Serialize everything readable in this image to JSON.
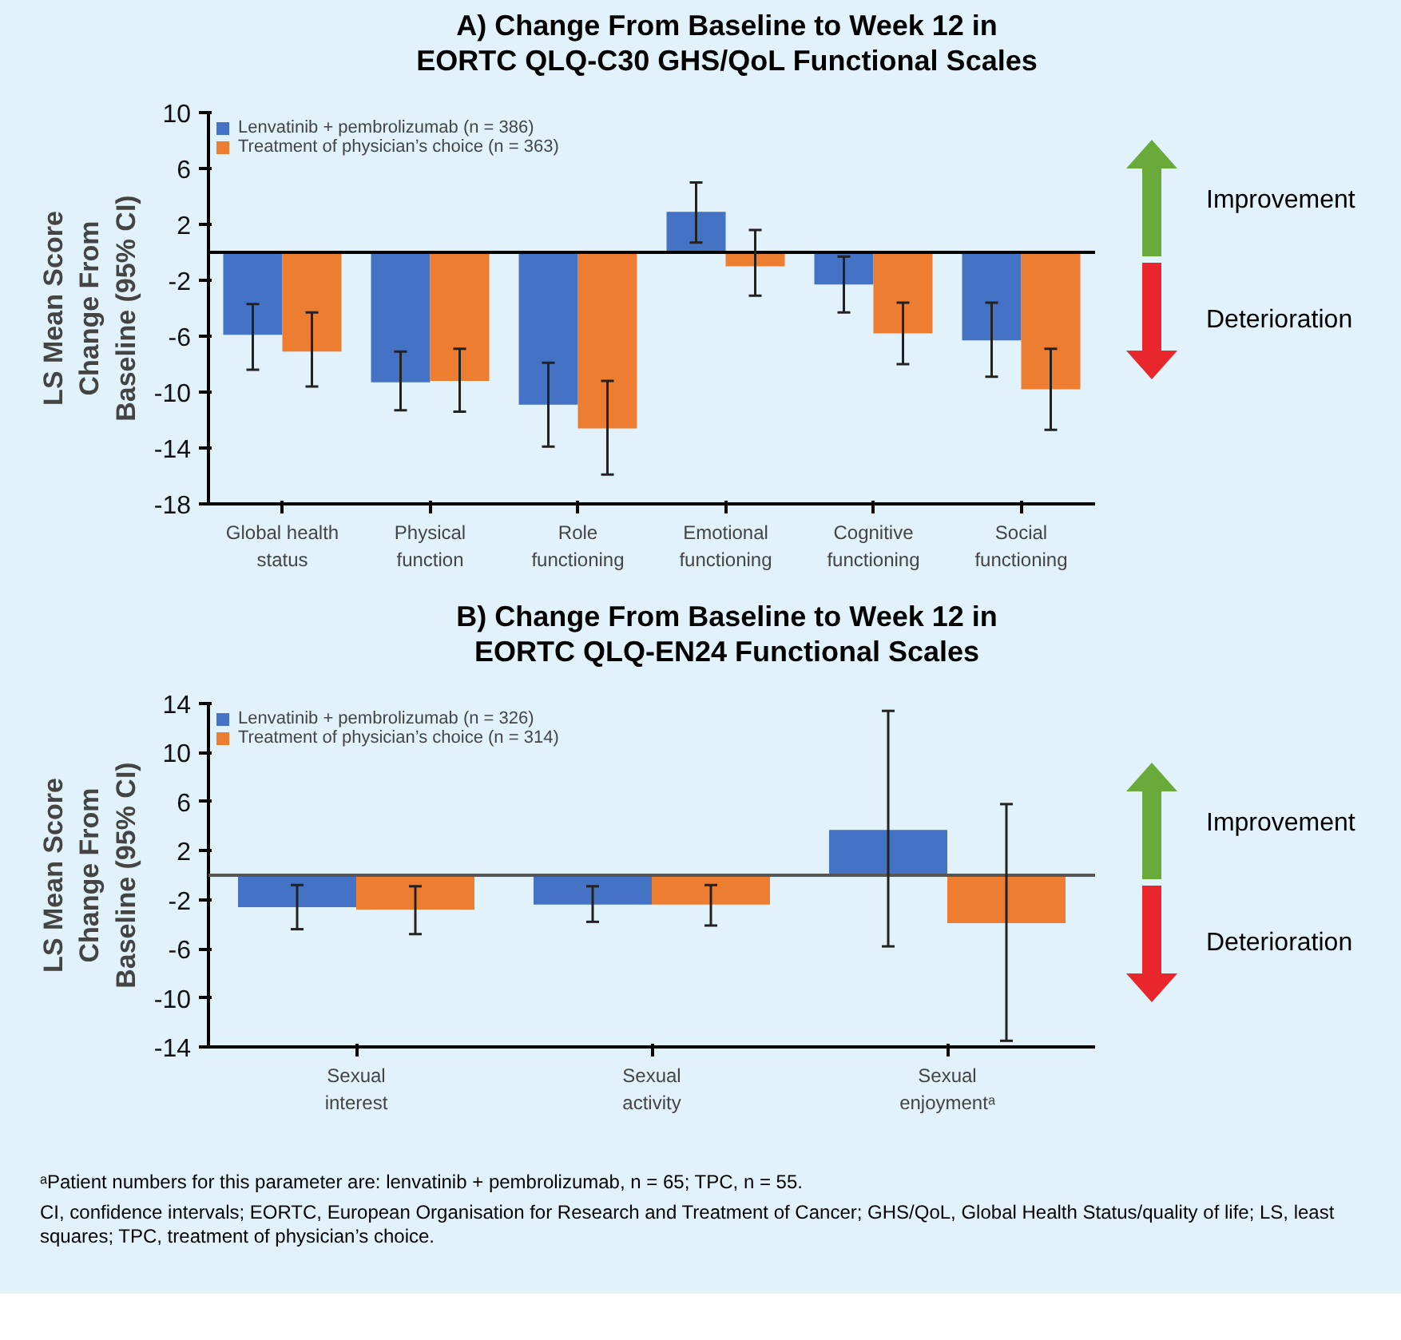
{
  "chart_data": [
    {
      "type": "bar",
      "title": "A) Change From Baseline to Week 12 in EORTC QLQ-C30 GHS/QoL Functional Scales",
      "ylabel": "LS Mean Score Change From Baseline (95% CI)",
      "categories": [
        "Global health status",
        "Physical function",
        "Role functioning",
        "Emotional functioning",
        "Cognitive functioning",
        "Social functioning"
      ],
      "series": [
        {
          "name": "Lenvatinib + pembrolizumab (n = 386)",
          "color": "#4472c4",
          "values": [
            -5.9,
            -9.3,
            -10.9,
            2.9,
            -2.3,
            -6.3
          ],
          "errors": [
            [
              -8.4,
              -3.7
            ],
            [
              -11.3,
              -7.1
            ],
            [
              -13.9,
              -7.9
            ],
            [
              0.7,
              5.0
            ],
            [
              -4.3,
              -0.3
            ],
            [
              -8.9,
              -3.6
            ]
          ]
        },
        {
          "name": "Treatment of physician’s choice (n = 363)",
          "color": "#ed7d31",
          "values": [
            -7.1,
            -9.2,
            -12.6,
            -1.0,
            -5.8,
            -9.8
          ],
          "errors": [
            [
              -9.6,
              -4.3
            ],
            [
              -11.4,
              -6.9
            ],
            [
              -15.9,
              -9.2
            ],
            [
              -3.1,
              1.6
            ],
            [
              -8.0,
              -3.6
            ],
            [
              -12.7,
              -6.9
            ]
          ]
        }
      ],
      "ylim": [
        -18,
        10
      ],
      "yticks": [
        -18,
        -14,
        -10,
        -6,
        -2,
        2,
        6,
        10
      ],
      "grid": false,
      "legend": "top left",
      "ref_lines": [
        {
          "axis": "y",
          "value": 0,
          "color": "#000000"
        }
      ],
      "annotations": [
        "Improvement",
        "Deterioration"
      ]
    },
    {
      "type": "bar",
      "title": "B) Change From Baseline to Week 12 in EORTC QLQ-EN24 Functional Scales",
      "ylabel": "LS Mean Score Change From Baseline (95% CI)",
      "categories": [
        "Sexual interest",
        "Sexual activity",
        "Sexual enjoymentᵃ"
      ],
      "series": [
        {
          "name": "Lenvatinib + pembrolizumab (n = 326)",
          "color": "#4472c4",
          "values": [
            -2.6,
            -2.4,
            3.7
          ],
          "errors": [
            [
              -4.4,
              -0.8
            ],
            [
              -3.8,
              -0.9
            ],
            [
              -5.8,
              13.4
            ]
          ]
        },
        {
          "name": "Treatment of physician’s choice (n = 314)",
          "color": "#ed7d31",
          "values": [
            -2.8,
            -2.4,
            -3.9
          ],
          "errors": [
            [
              -4.8,
              -0.9
            ],
            [
              -4.1,
              -0.8
            ],
            [
              -13.5,
              5.8
            ]
          ]
        }
      ],
      "ylim": [
        -14,
        14
      ],
      "yticks": [
        -14,
        -10,
        -6,
        -2,
        2,
        6,
        10,
        14
      ],
      "grid": false,
      "legend": "top left",
      "ref_lines": [
        {
          "axis": "y",
          "value": 0,
          "color": "#555555"
        }
      ],
      "annotations": [
        "Improvement",
        "Deterioration",
        "ᵃPatient numbers for this parameter are: lenvatinib + pembrolizumab, n = 65; TPC, n = 55.",
        "CI, confidence intervals; EORTC, European Organisation for Research and Treatment of Cancer; GHS/QoL, Global Health Status/quality of life; LS, least squares; TPC, treatment of physician’s choice."
      ]
    }
  ]
}
